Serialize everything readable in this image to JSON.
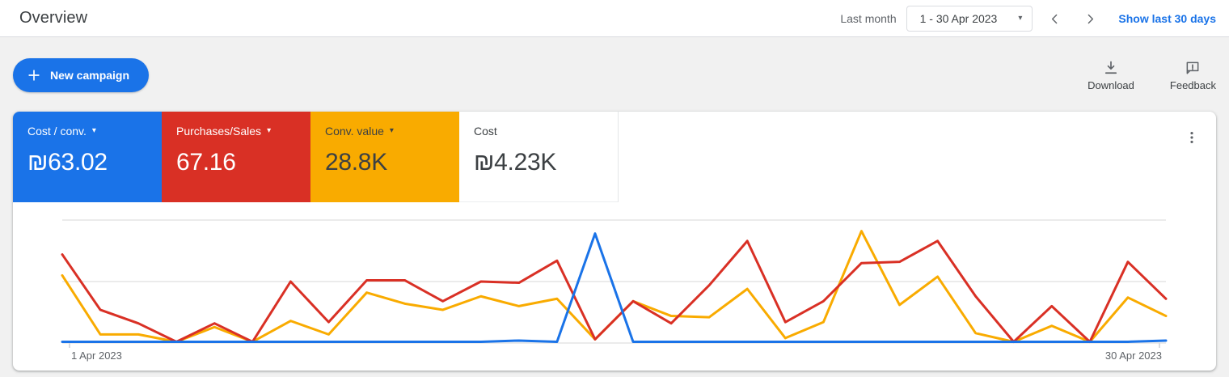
{
  "header": {
    "title": "Overview",
    "date_range_label": "Last month",
    "date_range_value": "1 - 30 Apr 2023",
    "show_last_link": "Show last 30 days"
  },
  "toolbar": {
    "new_campaign_label": "New campaign",
    "download_label": "Download",
    "feedback_label": "Feedback"
  },
  "metric_cards": [
    {
      "label": "Cost / conv.",
      "value": "₪63.02",
      "color": "#1a73e8",
      "text_color": "#ffffff",
      "has_dropdown": true
    },
    {
      "label": "Purchases/Sales",
      "value": "67.16",
      "color": "#d93025",
      "text_color": "#ffffff",
      "has_dropdown": true
    },
    {
      "label": "Conv. value",
      "value": "28.8K",
      "color": "#f9ab00",
      "text_color": "#3c4043",
      "has_dropdown": true
    },
    {
      "label": "Cost",
      "value": "₪4.23K",
      "color": "#ffffff",
      "text_color": "#3c4043",
      "has_dropdown": false
    }
  ],
  "icons": {
    "dropdown_caret": "▾"
  },
  "colors": {
    "accent_blue": "#1a73e8",
    "series_blue": "#1a73e8",
    "series_red": "#d93025",
    "series_yellow": "#f9ab00",
    "gridline": "#ebebeb",
    "axis_text": "#5f6368"
  },
  "chart_data": {
    "type": "line",
    "title": "",
    "xlabel": "",
    "ylabel": "",
    "num_points": 30,
    "x_axis_labels": [
      "1 Apr 2023",
      "30 Apr 2023"
    ],
    "y_axis": "unlabeled; values are % of plot height (0 = baseline, 100 = top gridline)",
    "grid": "3 horizontal gridlines (top, middle, baseline)",
    "legend_position": "none (metric cards act as legend)",
    "series": [
      {
        "name": "Cost / conv.",
        "color": "#1a73e8",
        "values": [
          1,
          1,
          1,
          1,
          1,
          1,
          1,
          1,
          1,
          1,
          1,
          1,
          2,
          1,
          89,
          1,
          1,
          1,
          1,
          1,
          1,
          1,
          1,
          1,
          1,
          1,
          1,
          1,
          1,
          2
        ]
      },
      {
        "name": "Purchases/Sales",
        "color": "#d93025",
        "values": [
          72,
          27,
          16,
          1,
          16,
          1,
          50,
          17,
          51,
          51,
          34,
          50,
          49,
          67,
          3,
          34,
          16,
          47,
          83,
          17,
          34,
          65,
          66,
          83,
          38,
          1,
          30,
          1,
          66,
          36
        ]
      },
      {
        "name": "Conv. value",
        "color": "#f9ab00",
        "values": [
          55,
          7,
          7,
          1,
          13,
          1,
          18,
          7,
          41,
          32,
          27,
          38,
          30,
          36,
          3,
          34,
          22,
          21,
          44,
          4,
          17,
          91,
          31,
          54,
          8,
          1,
          14,
          1,
          37,
          22
        ]
      }
    ]
  }
}
